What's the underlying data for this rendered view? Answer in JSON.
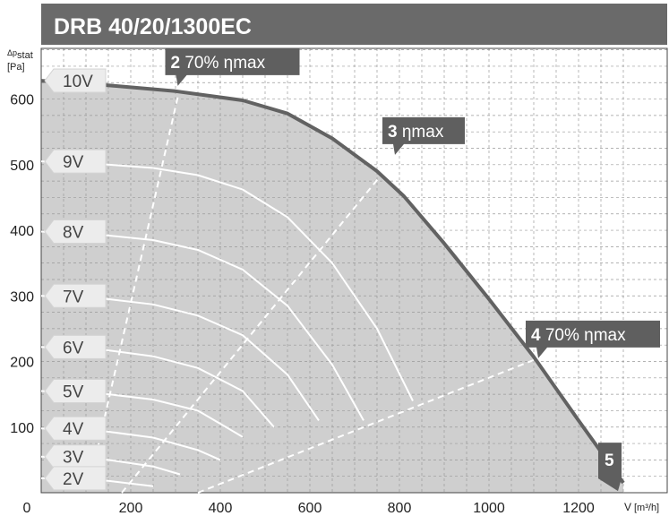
{
  "chart_data": {
    "type": "line",
    "title": "DRB 40/20/1300EC",
    "ylabel_line1": "Δp",
    "ylabel_sub": "stat",
    "ylabel_line2": "[Pa]",
    "xlabel_main": "V",
    "xlabel_unit": "[m³/h]",
    "x_zero_label": "0",
    "xlim": [
      0,
      1300
    ],
    "ylim": [
      0,
      680
    ],
    "x_ticks": [
      200,
      400,
      600,
      800,
      1000,
      1200
    ],
    "y_ticks": [
      100,
      200,
      300,
      400,
      500,
      600
    ],
    "grid": true,
    "colors": {
      "title_bar": "#6a6a6a",
      "area_fill": "#cfcfcf",
      "max_curve": "#626262",
      "speed_curves": "#ffffff",
      "efficiency_lines": "#ffffff",
      "marker_fill": "#5f5f5f",
      "speed_tag_fill": "#ececec"
    },
    "max_curve": {
      "name": "10V",
      "x": [
        0,
        150,
        300,
        450,
        550,
        650,
        750,
        810,
        900,
        1000,
        1100,
        1200,
        1300
      ],
      "y": [
        628,
        621,
        612,
        598,
        578,
        540,
        490,
        452,
        380,
        295,
        207,
        110,
        15
      ]
    },
    "series": [
      {
        "name": "9V",
        "x": [
          0,
          150,
          250,
          350,
          450,
          550,
          650,
          750,
          830
        ],
        "y": [
          505,
          500,
          495,
          484,
          462,
          420,
          350,
          250,
          140
        ]
      },
      {
        "name": "8V",
        "x": [
          0,
          150,
          250,
          350,
          450,
          550,
          650,
          720
        ],
        "y": [
          398,
          392,
          385,
          370,
          340,
          285,
          195,
          110
        ]
      },
      {
        "name": "7V",
        "x": [
          0,
          150,
          250,
          350,
          450,
          550,
          620
        ],
        "y": [
          300,
          295,
          287,
          270,
          240,
          180,
          110
        ]
      },
      {
        "name": "6V",
        "x": [
          0,
          150,
          250,
          350,
          450,
          520
        ],
        "y": [
          222,
          217,
          208,
          190,
          155,
          100
        ]
      },
      {
        "name": "5V",
        "x": [
          0,
          150,
          250,
          350,
          450
        ],
        "y": [
          155,
          150,
          142,
          125,
          85
        ]
      },
      {
        "name": "4V",
        "x": [
          0,
          150,
          250,
          350,
          400
        ],
        "y": [
          98,
          93,
          84,
          65,
          50
        ]
      },
      {
        "name": "3V",
        "x": [
          0,
          150,
          250,
          310
        ],
        "y": [
          55,
          50,
          40,
          28
        ]
      },
      {
        "name": "2V",
        "x": [
          0,
          150,
          250
        ],
        "y": [
          22,
          18,
          10
        ]
      }
    ],
    "efficiency_lines": [
      {
        "name": "2 70% ηmax",
        "x": [
          120,
          310
        ],
        "y": [
          50,
          618
        ]
      },
      {
        "name": "3 ηmax",
        "x": [
          180,
          790
        ],
        "y": [
          0,
          510
        ]
      },
      {
        "name": "4 70% ηmax",
        "x": [
          350,
          1110
        ],
        "y": [
          0,
          205
        ]
      }
    ],
    "markers": [
      {
        "id": "2",
        "label": "70% ηmax",
        "x": 305,
        "y": 620
      },
      {
        "id": "3",
        "label": "ηmax",
        "x": 790,
        "y": 515
      },
      {
        "id": "4",
        "label": "70% ηmax",
        "x": 1110,
        "y": 205
      },
      {
        "id": "5",
        "label": "",
        "x": 1300,
        "y": 8
      }
    ],
    "speed_tags": [
      {
        "label": "10V",
        "y": 628
      },
      {
        "label": "9V",
        "y": 505
      },
      {
        "label": "8V",
        "y": 398
      },
      {
        "label": "7V",
        "y": 300
      },
      {
        "label": "6V",
        "y": 222
      },
      {
        "label": "5V",
        "y": 155
      },
      {
        "label": "4V",
        "y": 98
      },
      {
        "label": "3V",
        "y": 55
      },
      {
        "label": "2V",
        "y": 22
      }
    ]
  }
}
